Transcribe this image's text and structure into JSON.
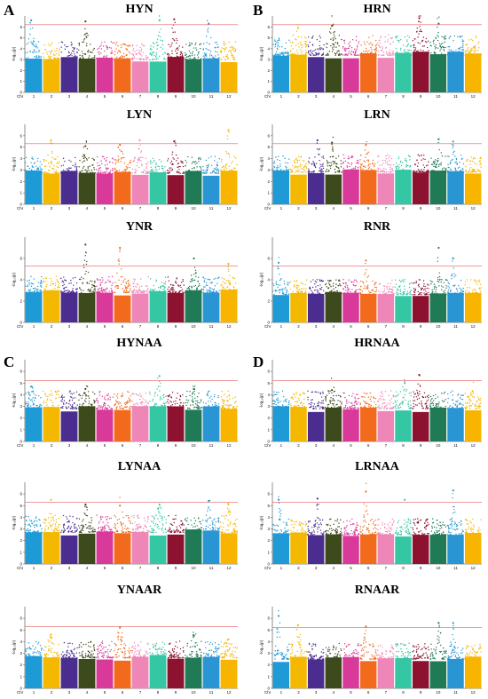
{
  "figure": {
    "panel_letters": [
      "A",
      "B",
      "C",
      "D"
    ],
    "y_axis_label": "-log₁₀(p)",
    "x_axis_prefix": "Chr",
    "chromosomes": [
      "1",
      "2",
      "3",
      "4",
      "5",
      "6",
      "7",
      "8",
      "9",
      "10",
      "11",
      "12"
    ],
    "chromosome_colors": [
      "#1e9ad6",
      "#f5b800",
      "#4a2d8f",
      "#3d4a1c",
      "#d93a9a",
      "#f26a1b",
      "#ee86b7",
      "#35c6a4",
      "#8c1230",
      "#1f7a55",
      "#2a95d3",
      "#f7b500"
    ],
    "threshold_color": "#e46060"
  },
  "chart_data": [
    {
      "type": "scatter",
      "subtype": "manhattan",
      "panel": "A",
      "title": "HYN",
      "ylim": [
        0,
        7
      ],
      "yticks": [
        0,
        1,
        2,
        3,
        4,
        5,
        6
      ],
      "threshold": 6.2,
      "baseline": 3.0,
      "peaks": [
        [
          1,
          6.6
        ],
        [
          4,
          6.5
        ],
        [
          8,
          6.6
        ],
        [
          9,
          6.7
        ],
        [
          11,
          6.3
        ]
      ]
    },
    {
      "type": "scatter",
      "subtype": "manhattan",
      "panel": "B",
      "title": "HRN",
      "ylim": [
        0,
        7
      ],
      "yticks": [
        0,
        1,
        2,
        3,
        4,
        5,
        6
      ],
      "threshold": 6.2,
      "baseline": 3.4,
      "peaks": [
        [
          2,
          5.9
        ],
        [
          4,
          6.1
        ],
        [
          9,
          6.8
        ],
        [
          10,
          6.3
        ]
      ]
    },
    {
      "type": "scatter",
      "subtype": "manhattan",
      "panel": "A",
      "title": "LYN",
      "ylim": [
        0,
        7
      ],
      "yticks": [
        0,
        1,
        2,
        3,
        4,
        5,
        6
      ],
      "threshold": 5.3,
      "baseline": 2.7,
      "peaks": [
        [
          2,
          5.6
        ],
        [
          4,
          5.1
        ],
        [
          6,
          5.2
        ],
        [
          7,
          5.6
        ],
        [
          9,
          5.5
        ],
        [
          12,
          6.5
        ]
      ]
    },
    {
      "type": "scatter",
      "subtype": "manhattan",
      "panel": "B",
      "title": "LRN",
      "ylim": [
        0,
        7
      ],
      "yticks": [
        0,
        1,
        2,
        3,
        4,
        5,
        6
      ],
      "threshold": 5.3,
      "baseline": 2.8,
      "peaks": [
        [
          3,
          5.6
        ],
        [
          4,
          5.4
        ],
        [
          6,
          5.2
        ],
        [
          10,
          5.7
        ],
        [
          11,
          5.5
        ]
      ]
    },
    {
      "type": "scatter",
      "subtype": "manhattan",
      "panel": "A",
      "title": "YNR",
      "ylim": [
        0,
        8
      ],
      "yticks": [
        0,
        2,
        4,
        6
      ],
      "threshold": 5.3,
      "baseline": 2.8,
      "peaks": [
        [
          4,
          7.3
        ],
        [
          6,
          7.0
        ],
        [
          10,
          6.0
        ],
        [
          12,
          5.5
        ]
      ]
    },
    {
      "type": "scatter",
      "subtype": "manhattan",
      "panel": "B",
      "title": "RNR",
      "ylim": [
        0,
        8
      ],
      "yticks": [
        0,
        2,
        4,
        6
      ],
      "threshold": 5.3,
      "baseline": 2.6,
      "peaks": [
        [
          1,
          5.6
        ],
        [
          6,
          5.8
        ],
        [
          10,
          7.0
        ],
        [
          11,
          6.0
        ]
      ]
    },
    {
      "type": "scatter",
      "subtype": "manhattan",
      "panel": "C",
      "title": "HYNAA",
      "ylim": [
        0,
        7
      ],
      "yticks": [
        0,
        1,
        2,
        3,
        4,
        5,
        6
      ],
      "threshold": 5.2,
      "baseline": 2.8,
      "peaks": [
        [
          1,
          4.7
        ],
        [
          4,
          4.5
        ],
        [
          8,
          5.6
        ],
        [
          10,
          4.5
        ]
      ]
    },
    {
      "type": "scatter",
      "subtype": "manhattan",
      "panel": "D",
      "title": "HRNAA",
      "ylim": [
        0,
        7
      ],
      "yticks": [
        0,
        1,
        2,
        3,
        4,
        5,
        6
      ],
      "threshold": 5.2,
      "baseline": 2.8,
      "peaks": [
        [
          4,
          4.4
        ],
        [
          8,
          5.0
        ],
        [
          9,
          5.7
        ],
        [
          12,
          4.3
        ]
      ]
    },
    {
      "type": "scatter",
      "subtype": "manhattan",
      "panel": "C",
      "title": "LYNAA",
      "ylim": [
        0,
        7
      ],
      "yticks": [
        0,
        1,
        2,
        3,
        4,
        5,
        6
      ],
      "threshold": 5.3,
      "baseline": 2.7,
      "peaks": [
        [
          2,
          5.5
        ],
        [
          4,
          5.1
        ],
        [
          6,
          5.0
        ],
        [
          8,
          5.1
        ],
        [
          11,
          5.4
        ],
        [
          12,
          5.1
        ]
      ]
    },
    {
      "type": "scatter",
      "subtype": "manhattan",
      "panel": "D",
      "title": "LRNAA",
      "ylim": [
        0,
        7
      ],
      "yticks": [
        0,
        1,
        2,
        3,
        4,
        5,
        6
      ],
      "threshold": 5.3,
      "baseline": 2.5,
      "peaks": [
        [
          1,
          5.5
        ],
        [
          3,
          5.6
        ],
        [
          6,
          6.2
        ],
        [
          8,
          5.5
        ],
        [
          11,
          6.3
        ]
      ]
    },
    {
      "type": "scatter",
      "subtype": "manhattan",
      "panel": "C",
      "title": "YNAAR",
      "ylim": [
        0,
        7
      ],
      "yticks": [
        0,
        1,
        2,
        3,
        4,
        5,
        6
      ],
      "threshold": 5.3,
      "baseline": 2.6,
      "peaks": [
        [
          2,
          4.6
        ],
        [
          6,
          5.2
        ],
        [
          10,
          4.5
        ],
        [
          12,
          4.2
        ]
      ]
    },
    {
      "type": "scatter",
      "subtype": "manhattan",
      "panel": "D",
      "title": "RNAAR",
      "ylim": [
        0,
        7
      ],
      "yticks": [
        0,
        1,
        2,
        3,
        4,
        5,
        6
      ],
      "threshold": 5.2,
      "baseline": 2.5,
      "peaks": [
        [
          1,
          6.2
        ],
        [
          2,
          5.4
        ],
        [
          6,
          5.3
        ],
        [
          10,
          5.6
        ],
        [
          11,
          5.6
        ]
      ]
    }
  ]
}
